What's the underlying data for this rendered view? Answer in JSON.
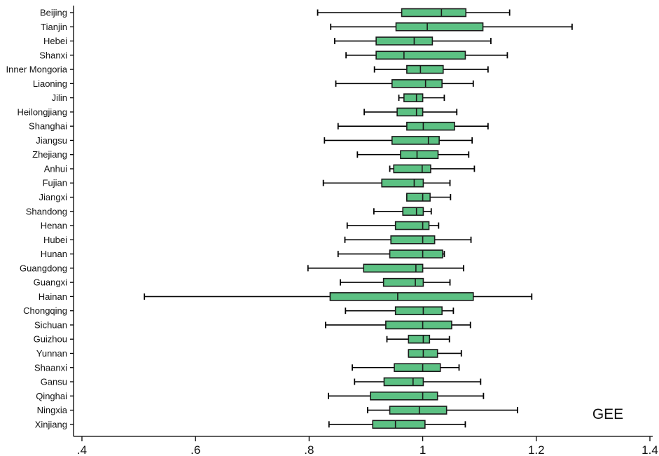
{
  "chart_data": {
    "type": "boxplot",
    "orientation": "horizontal",
    "annotation": "GEE",
    "xlim": [
      0.4,
      1.4
    ],
    "x_ticks": [
      {
        "value": 0.4,
        "label": ".4"
      },
      {
        "value": 0.6,
        "label": ".6"
      },
      {
        "value": 0.8,
        "label": ".8"
      },
      {
        "value": 1.0,
        "label": "1"
      },
      {
        "value": 1.2,
        "label": "1.2"
      },
      {
        "value": 1.4,
        "label": "1.4"
      }
    ],
    "box_color": "#5cc183",
    "categories": [
      "Beijing",
      "Tianjin",
      "Hebei",
      "Shanxi",
      "Inner Mongoria",
      "Liaoning",
      "Jilin",
      "Heilongjiang",
      "Shanghai",
      "Jiangsu",
      "Zhejiang",
      "Anhui",
      "Fujian",
      "Jiangxi",
      "Shandong",
      "Henan",
      "Hubei",
      "Hunan",
      "Guangdong",
      "Guangxi",
      "Hainan",
      "Chongqing",
      "Sichuan",
      "Guizhou",
      "Yunnan",
      "Shaanxi",
      "Gansu",
      "Qinghai",
      "Ningxia",
      "Xinjiang"
    ],
    "boxes": [
      {
        "min": 0.815,
        "q1": 0.963,
        "median": 1.033,
        "q3": 1.076,
        "max": 1.153
      },
      {
        "min": 0.838,
        "q1": 0.953,
        "median": 1.008,
        "q3": 1.106,
        "max": 1.263
      },
      {
        "min": 0.845,
        "q1": 0.918,
        "median": 0.985,
        "q3": 1.017,
        "max": 1.12
      },
      {
        "min": 0.865,
        "q1": 0.918,
        "median": 0.967,
        "q3": 1.075,
        "max": 1.149
      },
      {
        "min": 0.915,
        "q1": 0.972,
        "median": 0.996,
        "q3": 1.036,
        "max": 1.115
      },
      {
        "min": 0.847,
        "q1": 0.946,
        "median": 1.005,
        "q3": 1.034,
        "max": 1.089
      },
      {
        "min": 0.958,
        "q1": 0.967,
        "median": 0.989,
        "q3": 1.0,
        "max": 1.038
      },
      {
        "min": 0.897,
        "q1": 0.955,
        "median": 0.989,
        "q3": 1.0,
        "max": 1.06
      },
      {
        "min": 0.851,
        "q1": 0.972,
        "median": 1.001,
        "q3": 1.056,
        "max": 1.115
      },
      {
        "min": 0.827,
        "q1": 0.946,
        "median": 1.01,
        "q3": 1.029,
        "max": 1.087
      },
      {
        "min": 0.885,
        "q1": 0.961,
        "median": 0.99,
        "q3": 1.027,
        "max": 1.081
      },
      {
        "min": 0.942,
        "q1": 0.949,
        "median": 0.999,
        "q3": 1.014,
        "max": 1.091
      },
      {
        "min": 0.825,
        "q1": 0.928,
        "median": 0.985,
        "q3": 1.001,
        "max": 1.048
      },
      {
        "min": 0.972,
        "q1": 0.972,
        "median": 1.0,
        "q3": 1.013,
        "max": 1.049
      },
      {
        "min": 0.914,
        "q1": 0.965,
        "median": 0.989,
        "q3": 1.001,
        "max": 1.015
      },
      {
        "min": 0.867,
        "q1": 0.952,
        "median": 1.0,
        "q3": 1.011,
        "max": 1.028
      },
      {
        "min": 0.863,
        "q1": 0.944,
        "median": 1.0,
        "q3": 1.021,
        "max": 1.085
      },
      {
        "min": 0.851,
        "q1": 0.942,
        "median": 1.0,
        "q3": 1.035,
        "max": 1.038
      },
      {
        "min": 0.798,
        "q1": 0.896,
        "median": 0.988,
        "q3": 1.0,
        "max": 1.072
      },
      {
        "min": 0.855,
        "q1": 0.931,
        "median": 0.987,
        "q3": 1.001,
        "max": 1.048
      },
      {
        "min": 0.51,
        "q1": 0.837,
        "median": 0.956,
        "q3": 1.089,
        "max": 1.192
      },
      {
        "min": 0.864,
        "q1": 0.952,
        "median": 1.001,
        "q3": 1.034,
        "max": 1.054
      },
      {
        "min": 0.829,
        "q1": 0.935,
        "median": 1.0,
        "q3": 1.051,
        "max": 1.084
      },
      {
        "min": 0.937,
        "q1": 0.975,
        "median": 1.001,
        "q3": 1.012,
        "max": 1.047
      },
      {
        "min": 0.975,
        "q1": 0.975,
        "median": 1.001,
        "q3": 1.026,
        "max": 1.068
      },
      {
        "min": 0.876,
        "q1": 0.95,
        "median": 1.0,
        "q3": 1.031,
        "max": 1.064
      },
      {
        "min": 0.88,
        "q1": 0.932,
        "median": 0.983,
        "q3": 1.001,
        "max": 1.102
      },
      {
        "min": 0.834,
        "q1": 0.908,
        "median": 1.0,
        "q3": 1.026,
        "max": 1.107
      },
      {
        "min": 0.903,
        "q1": 0.942,
        "median": 0.994,
        "q3": 1.042,
        "max": 1.167
      },
      {
        "min": 0.835,
        "q1": 0.912,
        "median": 0.952,
        "q3": 1.004,
        "max": 1.075
      }
    ]
  }
}
